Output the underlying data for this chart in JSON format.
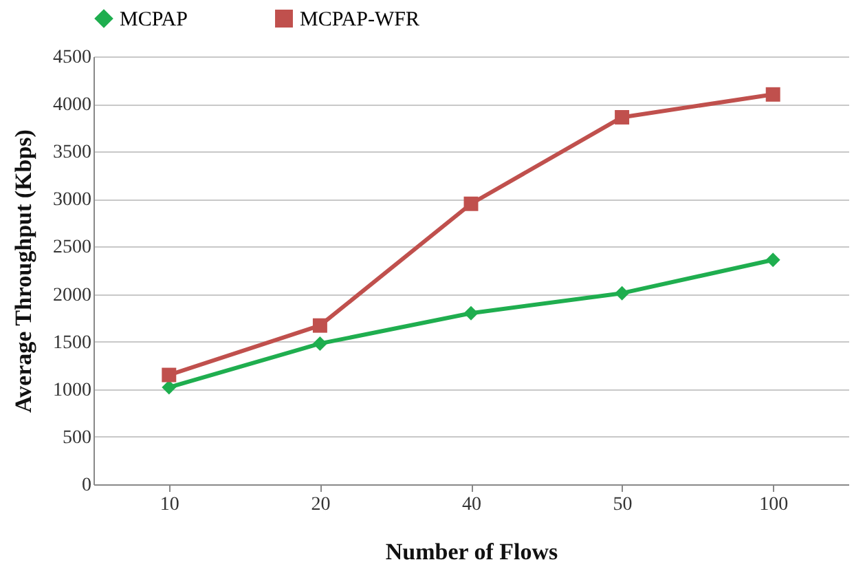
{
  "chart_data": {
    "type": "line",
    "xlabel": "Number of Flows",
    "ylabel": "Average Throughput (Kbps)",
    "categories": [
      "10",
      "20",
      "40",
      "50",
      "100"
    ],
    "series": [
      {
        "name": "MCPAP",
        "color": "#1fae4f",
        "marker": "diamond",
        "values": [
          1020,
          1480,
          1800,
          2010,
          2360
        ]
      },
      {
        "name": "MCPAP-WFR",
        "color": "#c0504d",
        "marker": "square",
        "values": [
          1150,
          1670,
          2950,
          3860,
          4100
        ]
      }
    ],
    "ylim": [
      0,
      4500
    ],
    "yticks": [
      0,
      500,
      1000,
      1500,
      2000,
      2500,
      3000,
      3500,
      4000,
      4500
    ],
    "grid": "y",
    "legend": "top",
    "line_style": "solid"
  }
}
